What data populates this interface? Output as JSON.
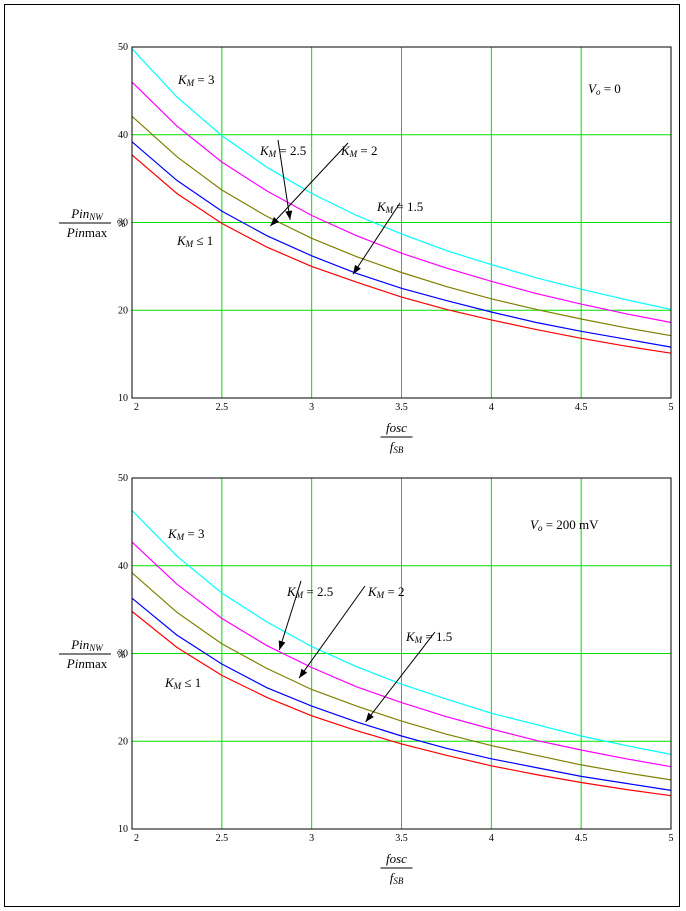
{
  "colors": {
    "grid": "#00e000",
    "axis": "#000000",
    "annotation": "#000000",
    "series": [
      "#ff0000",
      "#0000ff",
      "#808000",
      "#ff00ff",
      "#00ffff"
    ]
  },
  "chart_data": [
    {
      "type": "line",
      "xlim": [
        2,
        5
      ],
      "ylim": [
        10,
        50
      ],
      "grid": true,
      "x_ticks": [
        "2",
        "2.5",
        "3",
        "3.5",
        "4",
        "4.5",
        "5"
      ],
      "y_ticks": [
        "10",
        "20",
        "30",
        "40",
        "50"
      ],
      "xlabel": {
        "num": "fosc",
        "den": "fSB"
      },
      "ylabel": {
        "num": "PinNW",
        "den": "Pinmax",
        "unit": "%"
      },
      "condition": "Vo = 0",
      "x": [
        2,
        2.25,
        2.5,
        2.75,
        3,
        3.25,
        3.5,
        3.75,
        4,
        4.25,
        4.5,
        4.75,
        5
      ],
      "series": [
        {
          "values": [
            37.7,
            33.3,
            29.9,
            27.2,
            25.0,
            23.2,
            21.5,
            20.1,
            18.9,
            17.8,
            16.8,
            15.9,
            15.1
          ]
        },
        {
          "values": [
            39.2,
            34.8,
            31.3,
            28.5,
            26.2,
            24.2,
            22.5,
            21.1,
            19.8,
            18.6,
            17.6,
            16.7,
            15.8
          ]
        },
        {
          "values": [
            42.1,
            37.5,
            33.7,
            30.7,
            28.2,
            26.1,
            24.3,
            22.7,
            21.3,
            20.1,
            19.0,
            18.0,
            17.1
          ]
        },
        {
          "values": [
            46.0,
            41.0,
            36.9,
            33.6,
            30.8,
            28.5,
            26.5,
            24.8,
            23.3,
            21.9,
            20.7,
            19.6,
            18.6
          ]
        },
        {
          "values": [
            49.8,
            44.3,
            39.9,
            36.3,
            33.3,
            30.8,
            28.7,
            26.8,
            25.2,
            23.7,
            22.4,
            21.2,
            20.1
          ]
        }
      ],
      "annotations": [
        {
          "label": "KM = 3"
        },
        {
          "label": "KM = 2.5",
          "arrow_to": [
            2.88,
            30.3
          ]
        },
        {
          "label": "KM = 2",
          "arrow_to": [
            2.77,
            29.6
          ]
        },
        {
          "label": "KM = 1.5",
          "arrow_to": [
            3.23,
            24.1
          ]
        },
        {
          "label": "KM ≤ 1"
        }
      ]
    },
    {
      "type": "line",
      "xlim": [
        2,
        5
      ],
      "ylim": [
        10,
        50
      ],
      "grid": true,
      "x_ticks": [
        "2",
        "2.5",
        "3",
        "3.5",
        "4",
        "4.5",
        "5"
      ],
      "y_ticks": [
        "10",
        "20",
        "30",
        "40",
        "50"
      ],
      "xlabel": {
        "num": "fosc",
        "den": "fSB"
      },
      "ylabel": {
        "num": "PinNW",
        "den": "Pinmax",
        "unit": "%"
      },
      "condition": "Vo = 200 mV",
      "x": [
        2,
        2.25,
        2.5,
        2.75,
        3,
        3.25,
        3.5,
        3.75,
        4,
        4.25,
        4.5,
        4.75,
        5
      ],
      "series": [
        {
          "values": [
            34.8,
            30.7,
            27.5,
            25.0,
            22.9,
            21.2,
            19.7,
            18.4,
            17.2,
            16.2,
            15.3,
            14.5,
            13.8
          ]
        },
        {
          "values": [
            36.3,
            32.1,
            28.8,
            26.1,
            24.0,
            22.2,
            20.6,
            19.2,
            18.0,
            17.0,
            16.0,
            15.2,
            14.4
          ]
        },
        {
          "values": [
            39.2,
            34.7,
            31.1,
            28.3,
            25.9,
            24.0,
            22.3,
            20.8,
            19.5,
            18.4,
            17.3,
            16.4,
            15.6
          ]
        },
        {
          "values": [
            42.7,
            37.9,
            34.0,
            30.9,
            28.4,
            26.2,
            24.4,
            22.8,
            21.4,
            20.1,
            19.0,
            18.0,
            17.1
          ]
        },
        {
          "values": [
            46.3,
            41.1,
            36.9,
            33.6,
            30.8,
            28.5,
            26.5,
            24.8,
            23.2,
            21.9,
            20.6,
            19.5,
            18.5
          ]
        }
      ],
      "annotations": [
        {
          "label": "KM = 3"
        },
        {
          "label": "KM = 2.5",
          "arrow_to": [
            2.82,
            30.4
          ]
        },
        {
          "label": "KM = 2",
          "arrow_to": [
            2.93,
            27.2
          ]
        },
        {
          "label": "KM = 1.5",
          "arrow_to": [
            3.3,
            22.2
          ]
        },
        {
          "label": "KM ≤ 1"
        }
      ]
    }
  ]
}
